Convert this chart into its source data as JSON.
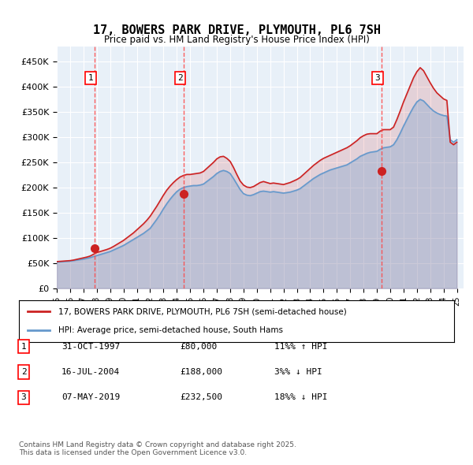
{
  "title": "17, BOWERS PARK DRIVE, PLYMOUTH, PL6 7SH",
  "subtitle": "Price paid vs. HM Land Registry's House Price Index (HPI)",
  "background_color": "#ffffff",
  "plot_background": "#e8f0f8",
  "grid_color": "#ffffff",
  "ylabel_color": "#000000",
  "ylim": [
    0,
    480000
  ],
  "yticks": [
    0,
    50000,
    100000,
    150000,
    200000,
    250000,
    300000,
    350000,
    400000,
    450000
  ],
  "ytick_labels": [
    "£0",
    "£50K",
    "£100K",
    "£150K",
    "£200K",
    "£250K",
    "£300K",
    "£350K",
    "£400K",
    "£450K"
  ],
  "xlim_start": 1995.0,
  "xlim_end": 2025.5,
  "xticks": [
    1995,
    1996,
    1997,
    1998,
    1999,
    2000,
    2001,
    2002,
    2003,
    2004,
    2005,
    2006,
    2007,
    2008,
    2009,
    2010,
    2011,
    2012,
    2013,
    2014,
    2015,
    2016,
    2017,
    2018,
    2019,
    2020,
    2021,
    2022,
    2023,
    2024,
    2025
  ],
  "hpi_color": "#6699cc",
  "price_color": "#cc2222",
  "purchase_marker_color": "#cc2222",
  "vline_color": "#ff4444",
  "legend_line1": "17, BOWERS PARK DRIVE, PLYMOUTH, PL6 7SH (semi-detached house)",
  "legend_line2": "HPI: Average price, semi-detached house, South Hams",
  "purchases": [
    {
      "num": 1,
      "date": "31-OCT-1997",
      "price": 80000,
      "year": 1997.83,
      "hpi_pct": "11%",
      "direction": "↑"
    },
    {
      "num": 2,
      "date": "16-JUL-2004",
      "price": 188000,
      "year": 2004.54,
      "hpi_pct": "3%",
      "direction": "↓"
    },
    {
      "num": 3,
      "date": "07-MAY-2019",
      "price": 232500,
      "year": 2019.35,
      "hpi_pct": "18%",
      "direction": "↓"
    }
  ],
  "footer": "Contains HM Land Registry data © Crown copyright and database right 2025.\nThis data is licensed under the Open Government Licence v3.0.",
  "hpi_data_x": [
    1995.0,
    1995.25,
    1995.5,
    1995.75,
    1996.0,
    1996.25,
    1996.5,
    1996.75,
    1997.0,
    1997.25,
    1997.5,
    1997.75,
    1998.0,
    1998.25,
    1998.5,
    1998.75,
    1999.0,
    1999.25,
    1999.5,
    1999.75,
    2000.0,
    2000.25,
    2000.5,
    2000.75,
    2001.0,
    2001.25,
    2001.5,
    2001.75,
    2002.0,
    2002.25,
    2002.5,
    2002.75,
    2003.0,
    2003.25,
    2003.5,
    2003.75,
    2004.0,
    2004.25,
    2004.5,
    2004.75,
    2005.0,
    2005.25,
    2005.5,
    2005.75,
    2006.0,
    2006.25,
    2006.5,
    2006.75,
    2007.0,
    2007.25,
    2007.5,
    2007.75,
    2008.0,
    2008.25,
    2008.5,
    2008.75,
    2009.0,
    2009.25,
    2009.5,
    2009.75,
    2010.0,
    2010.25,
    2010.5,
    2010.75,
    2011.0,
    2011.25,
    2011.5,
    2011.75,
    2012.0,
    2012.25,
    2012.5,
    2012.75,
    2013.0,
    2013.25,
    2013.5,
    2013.75,
    2014.0,
    2014.25,
    2014.5,
    2014.75,
    2015.0,
    2015.25,
    2015.5,
    2015.75,
    2016.0,
    2016.25,
    2016.5,
    2016.75,
    2017.0,
    2017.25,
    2017.5,
    2017.75,
    2018.0,
    2018.25,
    2018.5,
    2018.75,
    2019.0,
    2019.25,
    2019.5,
    2019.75,
    2020.0,
    2020.25,
    2020.5,
    2020.75,
    2021.0,
    2021.25,
    2021.5,
    2021.75,
    2022.0,
    2022.25,
    2022.5,
    2022.75,
    2023.0,
    2023.25,
    2023.5,
    2023.75,
    2024.0,
    2024.25,
    2024.5,
    2024.75,
    2025.0
  ],
  "hpi_data_y": [
    52000,
    52500,
    53000,
    53500,
    54000,
    55000,
    56000,
    57000,
    58000,
    59500,
    61000,
    63000,
    65000,
    67000,
    69000,
    71000,
    73000,
    76000,
    79000,
    82000,
    85000,
    89000,
    93000,
    97000,
    101000,
    105000,
    109000,
    114000,
    119000,
    128000,
    137000,
    147000,
    158000,
    168000,
    177000,
    185000,
    192000,
    197000,
    200000,
    202000,
    203000,
    204000,
    204000,
    205000,
    207000,
    212000,
    217000,
    222000,
    228000,
    232000,
    234000,
    232000,
    228000,
    218000,
    207000,
    196000,
    188000,
    185000,
    184000,
    186000,
    189000,
    192000,
    193000,
    192000,
    191000,
    192000,
    191000,
    190000,
    189000,
    190000,
    191000,
    193000,
    195000,
    198000,
    203000,
    208000,
    213000,
    218000,
    222000,
    226000,
    229000,
    232000,
    235000,
    237000,
    239000,
    241000,
    243000,
    245000,
    249000,
    253000,
    257000,
    262000,
    265000,
    268000,
    270000,
    271000,
    272000,
    276000,
    279000,
    280000,
    281000,
    285000,
    295000,
    308000,
    322000,
    335000,
    348000,
    360000,
    370000,
    375000,
    372000,
    365000,
    358000,
    352000,
    348000,
    345000,
    343000,
    342000,
    295000,
    290000,
    295000
  ],
  "price_data_x": [
    1995.0,
    1995.25,
    1995.5,
    1995.75,
    1996.0,
    1996.25,
    1996.5,
    1996.75,
    1997.0,
    1997.25,
    1997.5,
    1997.75,
    1998.0,
    1998.25,
    1998.5,
    1998.75,
    1999.0,
    1999.25,
    1999.5,
    1999.75,
    2000.0,
    2000.25,
    2000.5,
    2000.75,
    2001.0,
    2001.25,
    2001.5,
    2001.75,
    2002.0,
    2002.25,
    2002.5,
    2002.75,
    2003.0,
    2003.25,
    2003.5,
    2003.75,
    2004.0,
    2004.25,
    2004.5,
    2004.75,
    2005.0,
    2005.25,
    2005.5,
    2005.75,
    2006.0,
    2006.25,
    2006.5,
    2006.75,
    2007.0,
    2007.25,
    2007.5,
    2007.75,
    2008.0,
    2008.25,
    2008.5,
    2008.75,
    2009.0,
    2009.25,
    2009.5,
    2009.75,
    2010.0,
    2010.25,
    2010.5,
    2010.75,
    2011.0,
    2011.25,
    2011.5,
    2011.75,
    2012.0,
    2012.25,
    2012.5,
    2012.75,
    2013.0,
    2013.25,
    2013.5,
    2013.75,
    2014.0,
    2014.25,
    2014.5,
    2014.75,
    2015.0,
    2015.25,
    2015.5,
    2015.75,
    2016.0,
    2016.25,
    2016.5,
    2016.75,
    2017.0,
    2017.25,
    2017.5,
    2017.75,
    2018.0,
    2018.25,
    2018.5,
    2018.75,
    2019.0,
    2019.25,
    2019.5,
    2019.75,
    2020.0,
    2020.25,
    2020.5,
    2020.75,
    2021.0,
    2021.25,
    2021.5,
    2021.75,
    2022.0,
    2022.25,
    2022.5,
    2022.75,
    2023.0,
    2023.25,
    2023.5,
    2023.75,
    2024.0,
    2024.25,
    2024.5,
    2024.75,
    2025.0
  ],
  "price_data_y": [
    53000,
    53500,
    54000,
    54500,
    55000,
    56000,
    57500,
    59000,
    60500,
    62000,
    64000,
    67500,
    71000,
    73000,
    75000,
    77000,
    79500,
    83000,
    87000,
    91000,
    95000,
    100000,
    105000,
    110000,
    116000,
    122000,
    128000,
    135000,
    143000,
    153000,
    163000,
    174000,
    185000,
    195000,
    203000,
    210000,
    216000,
    221000,
    224000,
    226000,
    226000,
    227000,
    228000,
    229000,
    232000,
    238000,
    244000,
    250000,
    257000,
    261000,
    262000,
    258000,
    252000,
    240000,
    226000,
    213000,
    205000,
    201000,
    200000,
    202000,
    206000,
    210000,
    212000,
    210000,
    208000,
    209000,
    208000,
    207000,
    206000,
    208000,
    210000,
    213000,
    216000,
    220000,
    226000,
    232000,
    238000,
    244000,
    249000,
    254000,
    258000,
    261000,
    264000,
    267000,
    270000,
    273000,
    276000,
    279000,
    283000,
    288000,
    293000,
    299000,
    303000,
    306000,
    307000,
    307000,
    307000,
    312000,
    315000,
    315000,
    315000,
    320000,
    335000,
    352000,
    370000,
    386000,
    402000,
    418000,
    430000,
    438000,
    432000,
    420000,
    408000,
    397000,
    388000,
    382000,
    376000,
    373000,
    290000,
    285000,
    290000
  ]
}
